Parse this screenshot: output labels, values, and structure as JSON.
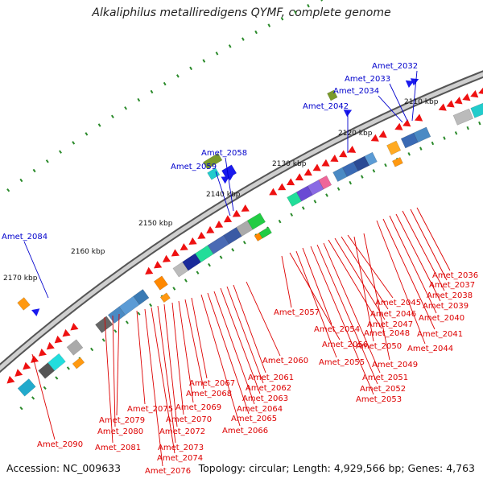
{
  "title": "Alkaliphilus metalliredigens QYMF, complete genome",
  "footer": {
    "accession": "Accession: NC_009633",
    "topology": "Topology: circular; Length: 4,929,566 bp; Genes: 4,763"
  },
  "colors": {
    "forward_label": "#0000cc",
    "reverse_label": "#dd0000",
    "backbone": "#888888"
  },
  "kbp_ticks": [
    "2110 kbp",
    "2120 kbp",
    "2130 kbp",
    "2140 kbp",
    "2150 kbp",
    "2160 kbp",
    "2170 kbp"
  ],
  "blue_labels": [
    "Amet_2032",
    "Amet_2033",
    "Amet_2034",
    "Amet_2042",
    "Amet_2058",
    "Amet_2059",
    "Amet_2084"
  ],
  "red_labels": [
    "Amet_2036",
    "Amet_2037",
    "Amet_2038",
    "Amet_2039",
    "Amet_2040",
    "Amet_2041",
    "Amet_2044",
    "Amet_2045",
    "Amet_2046",
    "Amet_2047",
    "Amet_2048",
    "Amet_2049",
    "Amet_2050",
    "Amet_2051",
    "Amet_2052",
    "Amet_2053",
    "Amet_2054",
    "Amet_2055",
    "Amet_2056",
    "Amet_2057",
    "Amet_2060",
    "Amet_2061",
    "Amet_2062",
    "Amet_2063",
    "Amet_2064",
    "Amet_2065",
    "Amet_2066",
    "Amet_2067",
    "Amet_2068",
    "Amet_2069",
    "Amet_2070",
    "Amet_2072",
    "Amet_2073",
    "Amet_2074",
    "Amet_2075",
    "Amet_2076",
    "Amet_2079",
    "Amet_2080",
    "Amet_2081",
    "Amet_2090"
  ]
}
